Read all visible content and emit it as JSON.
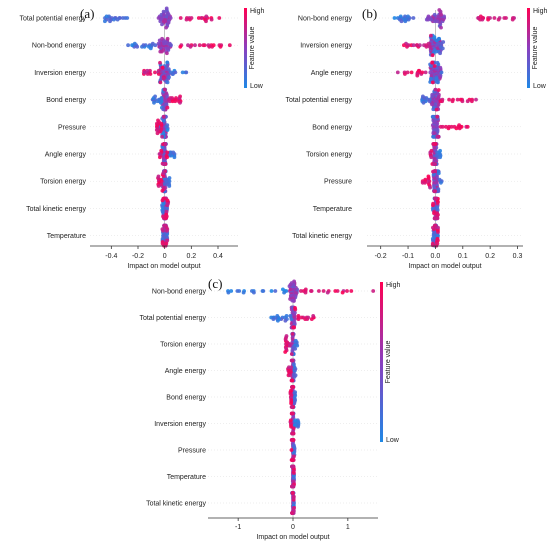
{
  "colors": {
    "low": "#1e88e5",
    "high": "#ff0052",
    "gridline": "#dddddd",
    "axis": "#333333"
  },
  "chart_data": [
    {
      "type": "scatter",
      "subtype": "shap-beeswarm",
      "panel_label": "(a)",
      "xlabel": "Impact on model output",
      "xlim": [
        -0.56,
        0.55
      ],
      "xticks": [
        -0.4,
        -0.2,
        0,
        0.2,
        0.4
      ],
      "xtick_labels": [
        "-0.4",
        "-0.2",
        "0",
        "0.2",
        "0.4"
      ],
      "colorbar": {
        "title": "Feature value",
        "high": "High",
        "low": "Low"
      },
      "features": [
        {
          "name": "Total potential energy",
          "low_min": -0.45,
          "low_max": -0.28,
          "mid": 0.0,
          "high_min": 0.08,
          "high_max": 0.42,
          "spread": 0.38
        },
        {
          "name": "Non-bond energy",
          "low_min": -0.28,
          "low_max": -0.05,
          "mid": 0.0,
          "high_min": 0.1,
          "high_max": 0.5,
          "spread": 0.4
        },
        {
          "name": "Inversion energy",
          "low_min": -0.05,
          "low_max": 0.18,
          "mid": 0.0,
          "high_min": -0.18,
          "high_max": 0.0,
          "spread": 0.26
        },
        {
          "name": "Bond energy",
          "low_min": -0.1,
          "low_max": 0.0,
          "mid": 0.0,
          "high_min": 0.0,
          "high_max": 0.12,
          "spread": 0.16
        },
        {
          "name": "Pressure",
          "low_min": -0.05,
          "low_max": 0.03,
          "mid": 0.0,
          "high_min": -0.06,
          "high_max": 0.0,
          "spread": 0.08
        },
        {
          "name": "Angle energy",
          "low_min": -0.02,
          "low_max": 0.08,
          "mid": 0.0,
          "high_min": -0.04,
          "high_max": 0.02,
          "spread": 0.07
        },
        {
          "name": "Torsion energy",
          "low_min": -0.02,
          "low_max": 0.04,
          "mid": 0.0,
          "high_min": -0.05,
          "high_max": 0.01,
          "spread": 0.05
        },
        {
          "name": "Total kinetic energy",
          "low_min": -0.02,
          "low_max": 0.02,
          "mid": 0.0,
          "high_min": -0.02,
          "high_max": 0.03,
          "spread": 0.03
        },
        {
          "name": "Temperature",
          "low_min": -0.02,
          "low_max": 0.02,
          "mid": 0.0,
          "high_min": -0.02,
          "high_max": 0.02,
          "spread": 0.03
        }
      ]
    },
    {
      "type": "scatter",
      "subtype": "shap-beeswarm",
      "panel_label": "(b)",
      "xlabel": "Impact on model output",
      "xlim": [
        -0.25,
        0.32
      ],
      "xticks": [
        -0.2,
        -0.1,
        0.0,
        0.1,
        0.2,
        0.3
      ],
      "xtick_labels": [
        "-0.2",
        "-0.1",
        "0.0",
        "0.1",
        "0.2",
        "0.3"
      ],
      "colorbar": {
        "title": "Feature value",
        "high": "High",
        "low": "Low"
      },
      "features": [
        {
          "name": "Non-bond energy",
          "low_min": -0.15,
          "low_max": -0.08,
          "mid": 0.0,
          "high_min": 0.13,
          "high_max": 0.29,
          "spread": 0.26
        },
        {
          "name": "Inversion energy",
          "low_min": -0.02,
          "low_max": 0.03,
          "mid": 0.0,
          "high_min": -0.12,
          "high_max": 0.0,
          "spread": 0.18
        },
        {
          "name": "Angle energy",
          "low_min": -0.02,
          "low_max": 0.03,
          "mid": 0.0,
          "high_min": -0.14,
          "high_max": 0.0,
          "spread": 0.16
        },
        {
          "name": "Total potential energy",
          "low_min": -0.05,
          "low_max": 0.0,
          "mid": 0.0,
          "high_min": 0.0,
          "high_max": 0.15,
          "spread": 0.12
        },
        {
          "name": "Bond energy",
          "low_min": -0.01,
          "low_max": 0.02,
          "mid": 0.0,
          "high_min": 0.0,
          "high_max": 0.12,
          "spread": 0.08
        },
        {
          "name": "Torsion energy",
          "low_min": -0.01,
          "low_max": 0.02,
          "mid": 0.0,
          "high_min": -0.02,
          "high_max": 0.0,
          "spread": 0.04
        },
        {
          "name": "Pressure",
          "low_min": -0.01,
          "low_max": 0.03,
          "mid": 0.0,
          "high_min": -0.05,
          "high_max": 0.0,
          "spread": 0.05
        },
        {
          "name": "Temperature",
          "low_min": -0.01,
          "low_max": 0.01,
          "mid": 0.0,
          "high_min": -0.01,
          "high_max": 0.01,
          "spread": 0.02
        },
        {
          "name": "Total kinetic energy",
          "low_min": -0.01,
          "low_max": 0.01,
          "mid": 0.0,
          "high_min": -0.01,
          "high_max": 0.01,
          "spread": 0.02
        }
      ]
    },
    {
      "type": "scatter",
      "subtype": "shap-beeswarm",
      "panel_label": "(c)",
      "xlabel": "Impact on model output",
      "xlim": [
        -1.55,
        1.55
      ],
      "xticks": [
        -1,
        0,
        1
      ],
      "xtick_labels": [
        "-1",
        "0",
        "1"
      ],
      "colorbar": {
        "title": "Feature value",
        "high": "High",
        "low": "Low"
      },
      "features": [
        {
          "name": "Non-bond energy",
          "low_min": -1.2,
          "low_max": -0.1,
          "mid": 0.0,
          "high_min": 0.1,
          "high_max": 1.5,
          "spread": 0.6
        },
        {
          "name": "Total potential energy",
          "low_min": -0.5,
          "low_max": -0.02,
          "mid": 0.0,
          "high_min": 0.0,
          "high_max": 0.4,
          "spread": 0.3
        },
        {
          "name": "Torsion energy",
          "low_min": -0.02,
          "low_max": 0.08,
          "mid": 0.0,
          "high_min": -0.15,
          "high_max": 0.0,
          "spread": 0.1
        },
        {
          "name": "Angle energy",
          "low_min": -0.02,
          "low_max": 0.05,
          "mid": 0.0,
          "high_min": -0.1,
          "high_max": 0.0,
          "spread": 0.08
        },
        {
          "name": "Bond energy",
          "low_min": -0.02,
          "low_max": 0.04,
          "mid": 0.0,
          "high_min": -0.05,
          "high_max": 0.01,
          "spread": 0.05
        },
        {
          "name": "Inversion energy",
          "low_min": -0.03,
          "low_max": 0.1,
          "mid": 0.0,
          "high_min": -0.05,
          "high_max": 0.02,
          "spread": 0.05
        },
        {
          "name": "Pressure",
          "low_min": -0.02,
          "low_max": 0.03,
          "mid": 0.0,
          "high_min": -0.03,
          "high_max": 0.02,
          "spread": 0.04
        },
        {
          "name": "Temperature",
          "low_min": -0.02,
          "low_max": 0.02,
          "mid": 0.0,
          "high_min": -0.02,
          "high_max": 0.02,
          "spread": 0.03
        },
        {
          "name": "Total kinetic energy",
          "low_min": -0.02,
          "low_max": 0.02,
          "mid": 0.0,
          "high_min": -0.02,
          "high_max": 0.02,
          "spread": 0.03
        }
      ]
    }
  ]
}
